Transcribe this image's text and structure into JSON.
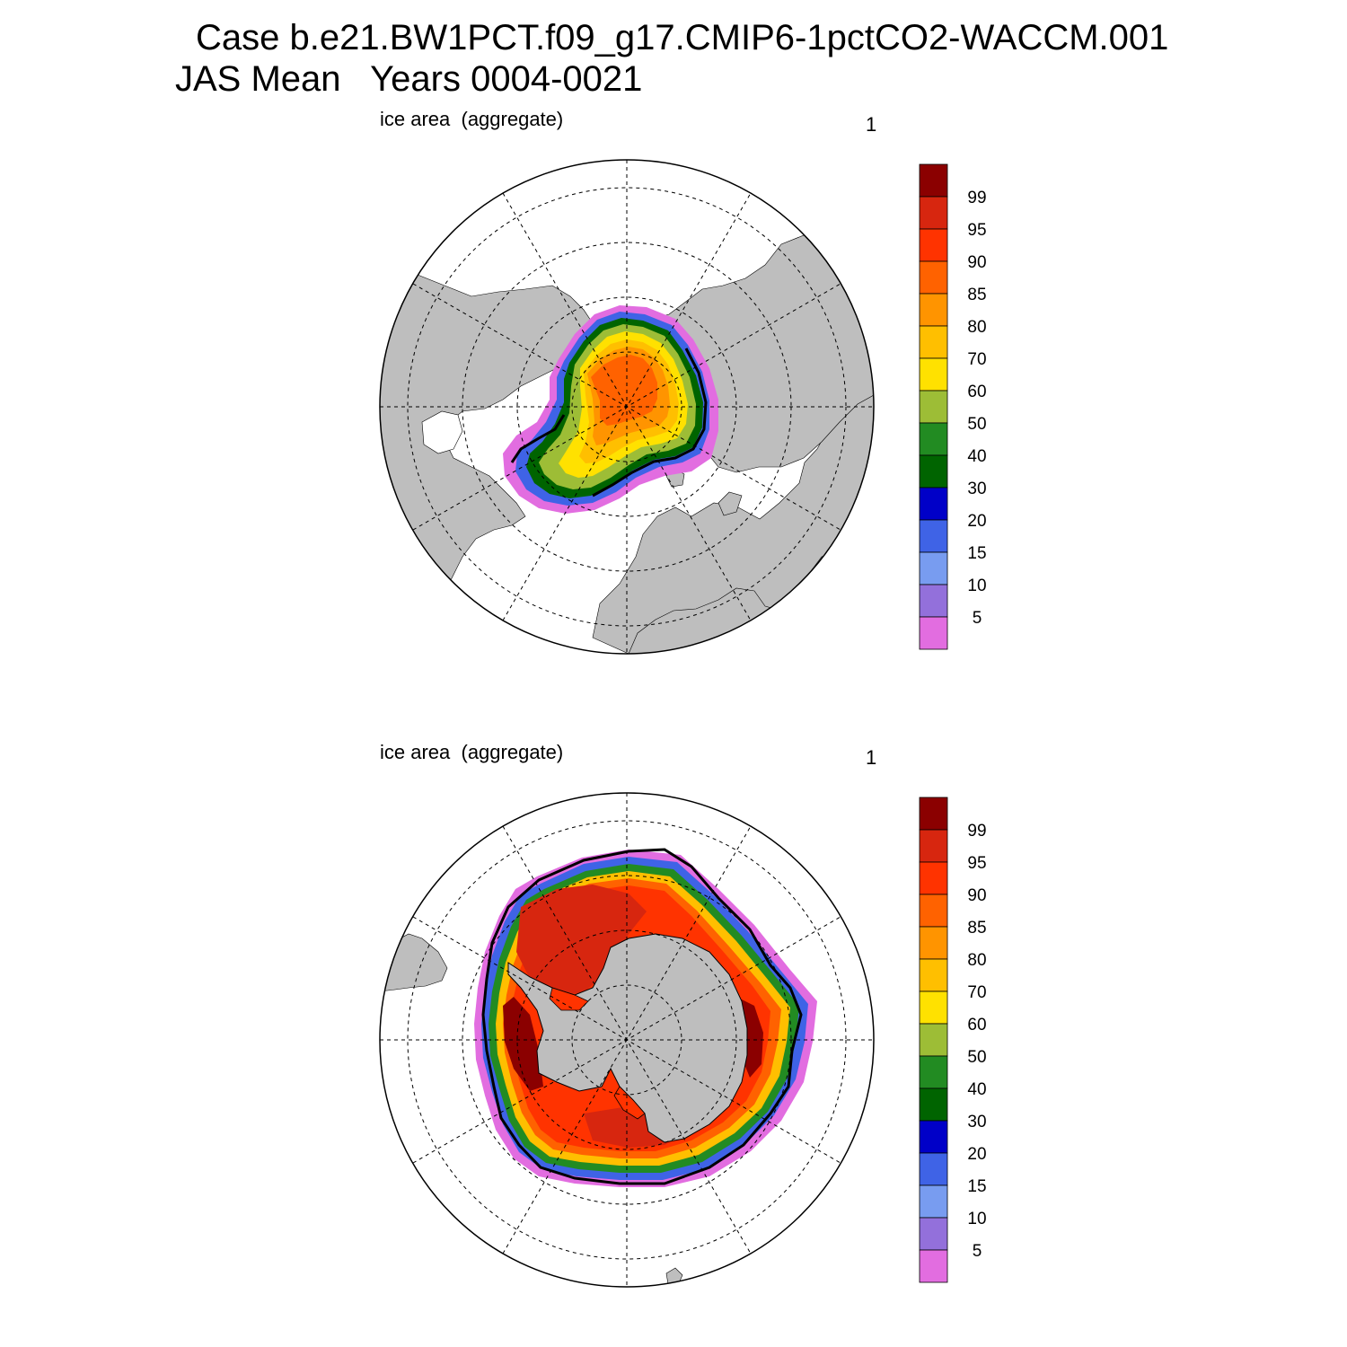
{
  "figure": {
    "title_line1": "Case b.e21.BW1PCT.f09_g17.CMIP6-1pctCO2-WACCM.001",
    "title_line2": "JAS Mean   Years 0004-0021"
  },
  "panels": [
    {
      "label": "ice area  (aggregate)",
      "number": "1",
      "hemisphere": "north"
    },
    {
      "label": "ice area  (aggregate)",
      "number": "1",
      "hemisphere": "south"
    }
  ],
  "colorbar": {
    "tick_labels": [
      "99",
      "95",
      "90",
      "85",
      "80",
      "70",
      "60",
      "50",
      "40",
      "30",
      "20",
      "15",
      "10",
      "5"
    ],
    "colors": [
      "#8b0000",
      "#d7260f",
      "#ff3300",
      "#ff6200",
      "#ff9400",
      "#ffbf00",
      "#ffe100",
      "#9dbd36",
      "#228b22",
      "#006400",
      "#0000c8",
      "#3f63e6",
      "#789cf0",
      "#9370db",
      "#e26de0"
    ]
  },
  "map_colors": {
    "land": "#bebebe",
    "ocean": "#ffffff",
    "grid": "#000000"
  }
}
